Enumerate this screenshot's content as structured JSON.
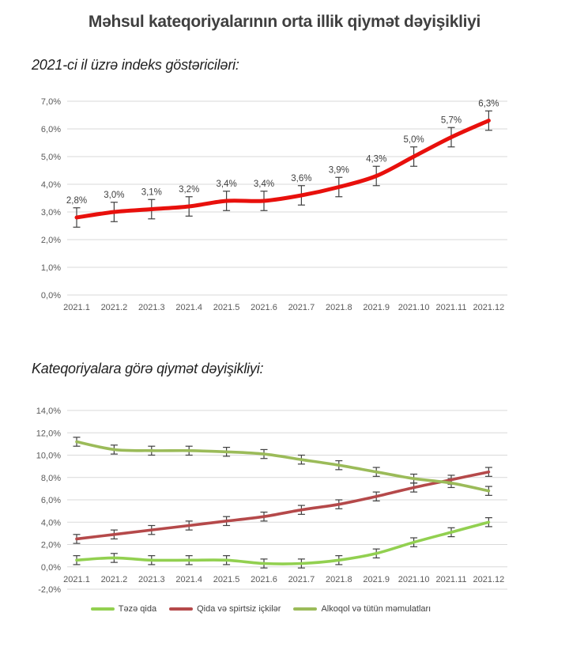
{
  "page": {
    "title": "Məhsul kateqoriyalarının orta illik qiymət dəyişikliyi",
    "subtitle1": "2021-ci il üzrə indeks göstəriciləri:",
    "subtitle2": "Kateqoriyalara görə qiymət dəyişikliyi:"
  },
  "colors": {
    "annual_line": "#e8100c",
    "gridline": "#d9d9d9",
    "axis_text": "#595959",
    "data_label_text": "#404040",
    "error_bar": "#404040"
  },
  "chart_data": [
    {
      "type": "line",
      "title": "2021-ci il üzrə indeks göstəriciləri",
      "categories": [
        "2021.1",
        "2021.2",
        "2021.3",
        "2021.4",
        "2021.5",
        "2021.6",
        "2021.7",
        "2021.8",
        "2021.9",
        "2021.10",
        "2021.11",
        "2021.12"
      ],
      "series": [
        {
          "name": "Orta illik qiymət dəyişikliyi",
          "color": "#e8100c",
          "values": [
            2.8,
            3.0,
            3.1,
            3.2,
            3.4,
            3.4,
            3.6,
            3.9,
            4.3,
            5.0,
            5.7,
            6.3
          ],
          "data_labels": [
            "2,8%",
            "3,0%",
            "3,1%",
            "3,2%",
            "3,4%",
            "3,4%",
            "3,6%",
            "3,9%",
            "4,3%",
            "5,0%",
            "5,7%",
            "6,3%"
          ]
        }
      ],
      "error_bar_value": 0.35,
      "ylim": [
        0,
        7
      ],
      "ytick_step": 1,
      "ytick_labels": [
        "0,0%",
        "1,0%",
        "2,0%",
        "3,0%",
        "4,0%",
        "5,0%",
        "6,0%",
        "7,0%"
      ],
      "grid": true,
      "data_labels_visible": true,
      "legend_position": "none"
    },
    {
      "type": "line",
      "title": "Kateqoriyalara görə qiymət dəyişikliyi",
      "categories": [
        "2021.1",
        "2021.2",
        "2021.3",
        "2021.4",
        "2021.5",
        "2021.6",
        "2021.7",
        "2021.8",
        "2021.9",
        "2021.10",
        "2021.11",
        "2021.12"
      ],
      "series": [
        {
          "name": "Təzə qida",
          "color": "#92d050",
          "values": [
            0.6,
            0.8,
            0.6,
            0.6,
            0.6,
            0.3,
            0.3,
            0.6,
            1.2,
            2.2,
            3.1,
            4.0
          ]
        },
        {
          "name": "Qida və spirtsiz içkilər",
          "color": "#b5494a",
          "values": [
            2.5,
            2.9,
            3.3,
            3.7,
            4.1,
            4.5,
            5.1,
            5.6,
            6.3,
            7.1,
            7.8,
            8.5
          ]
        },
        {
          "name": "Alkoqol və tütün məmulatları",
          "color": "#9bbb59",
          "values": [
            11.2,
            10.5,
            10.4,
            10.4,
            10.3,
            10.1,
            9.6,
            9.1,
            8.5,
            7.9,
            7.5,
            6.8
          ]
        }
      ],
      "error_bar_value": 0.4,
      "ylim": [
        -2,
        14
      ],
      "ytick_step": 2,
      "ytick_labels": [
        "-2,0%",
        "0,0%",
        "2,0%",
        "4,0%",
        "6,0%",
        "8,0%",
        "10,0%",
        "12,0%",
        "14,0%"
      ],
      "grid": true,
      "data_labels_visible": false,
      "legend_position": "bottom"
    }
  ]
}
